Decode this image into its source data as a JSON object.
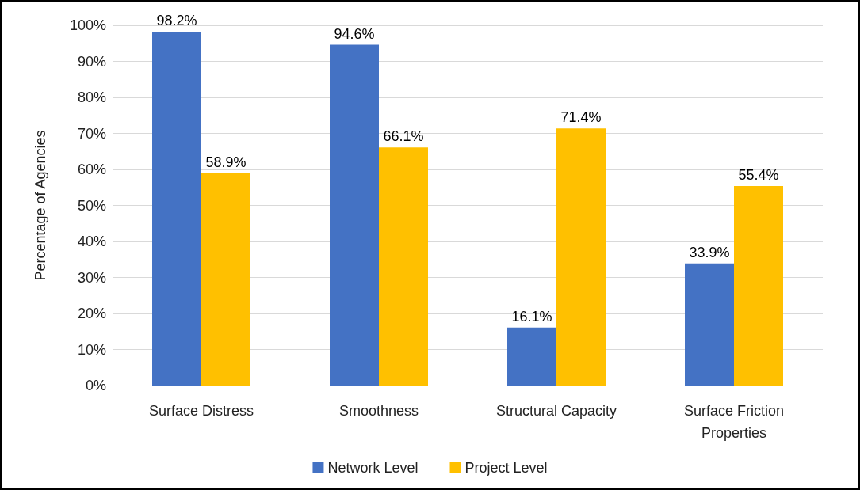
{
  "chart_data": {
    "type": "bar",
    "ylabel": "Percentage of Agencies",
    "categories": [
      "Surface Distress",
      "Smoothness",
      "Structural Capacity",
      "Surface Friction\nProperties"
    ],
    "series": [
      {
        "name": "Network Level",
        "color": "#4472c4",
        "values": [
          98.2,
          94.6,
          16.1,
          33.9
        ],
        "value_labels": [
          "98.2%",
          "94.6%",
          "16.1%",
          "33.9%"
        ]
      },
      {
        "name": "Project Level",
        "color": "#ffc000",
        "values": [
          58.9,
          66.1,
          71.4,
          55.4
        ],
        "value_labels": [
          "58.9%",
          "66.1%",
          "71.4%",
          "55.4%"
        ]
      }
    ],
    "ylim": [
      0,
      100
    ],
    "yticks": [
      {
        "value": 0,
        "label": "0%"
      },
      {
        "value": 10,
        "label": "10%"
      },
      {
        "value": 20,
        "label": "20%"
      },
      {
        "value": 30,
        "label": "30%"
      },
      {
        "value": 40,
        "label": "40%"
      },
      {
        "value": 50,
        "label": "50%"
      },
      {
        "value": 60,
        "label": "60%"
      },
      {
        "value": 70,
        "label": "70%"
      },
      {
        "value": 80,
        "label": "80%"
      },
      {
        "value": 90,
        "label": "90%"
      },
      {
        "value": 100,
        "label": "100%"
      }
    ],
    "grid": "y",
    "legend": "bottom"
  }
}
